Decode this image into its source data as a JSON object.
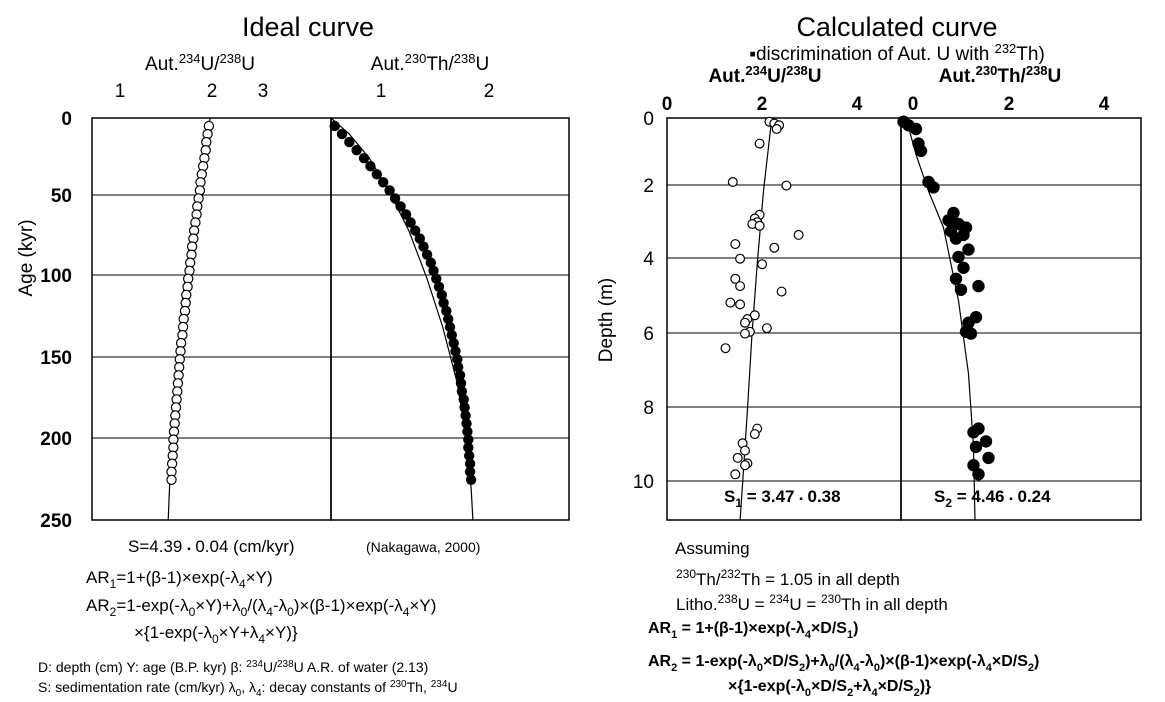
{
  "left_panel": {
    "title": "Ideal curve",
    "ylabel": "Age (kyr)",
    "y_ticks": [
      "0",
      "50",
      "100",
      "150",
      "200",
      "250"
    ]
  },
  "right_panel": {
    "title": "Calculated curve",
    "subtitle": "discrimination of Aut. U with 232Th)",
    "ylabel": "Depth (m)",
    "y_ticks": [
      "0",
      "2",
      "4",
      "6",
      "8",
      "10"
    ]
  },
  "formulas_left": {
    "line1": "S=4.39 ▪ 0.04  (cm/kyr)",
    "citation": "(Nakagawa, 2000)",
    "ar1": "AR1=1+(β-1)×exp(-λ4×Y)",
    "ar2a": "AR2=1-exp(-λ0×Y)+λ0/(λ4-λ0)×(β-1)×exp(-λ4×Y)",
    "ar2b": "×{1-exp(-λ0×Y+λ4×Y)}",
    "note1": "D: depth (cm)   Y: age (B.P. kyr)   β: 234U/238U A.R. of water (2.13)",
    "note2": "S: sedimentation rate (cm/kyr)   λ0, λ4: decay constants of 230Th, 234U"
  },
  "formulas_right": {
    "assuming": "Assuming",
    "line1": "230Th/232Th = 1.05 in all depth",
    "line2": "Litho.238U = 234U = 230Th in all depth",
    "ar1": "AR1 = 1+(β-1)×exp(-λ4×D/S1)",
    "ar2a": "AR2 = 1-exp(-λ0×D/S2)+λ0/(λ4-λ0)×(β-1)×exp(-λ4×D/S2)",
    "ar2b": "×{1-exp(-λ0×D/S2+λ4×D/S2)}"
  },
  "chart_data": [
    {
      "type": "scatter",
      "title": "Ideal curve",
      "xlabel": "Aut.234U/238U",
      "ylabel": "Age (kyr)",
      "xlim": [
        0.3,
        4.0
      ],
      "ylim": [
        250,
        0
      ],
      "x_ticks": [
        "1",
        "2",
        "3"
      ],
      "marker": "open-circle",
      "model_curve": {
        "x": [
          2.13,
          2.02,
          1.92,
          1.81,
          1.71,
          1.62,
          1.53,
          1.48
        ],
        "y": [
          0,
          25,
          50,
          80,
          110,
          150,
          200,
          250
        ]
      },
      "points": {
        "y": [
          5,
          10,
          15,
          20,
          25,
          30,
          35,
          40,
          45,
          50,
          55,
          60,
          65,
          70,
          75,
          80,
          85,
          90,
          95,
          100,
          105,
          110,
          115,
          120,
          125,
          130,
          135,
          140,
          145,
          150,
          155,
          160,
          165,
          170,
          175,
          180,
          185,
          190,
          195,
          200,
          205,
          210,
          215,
          220,
          225
        ],
        "x": [
          2.11,
          2.09,
          2.07,
          2.06,
          2.04,
          2.02,
          2.0,
          1.98,
          1.97,
          1.95,
          1.93,
          1.92,
          1.9,
          1.88,
          1.87,
          1.85,
          1.84,
          1.82,
          1.81,
          1.79,
          1.78,
          1.76,
          1.75,
          1.74,
          1.72,
          1.71,
          1.7,
          1.68,
          1.67,
          1.66,
          1.65,
          1.64,
          1.63,
          1.62,
          1.61,
          1.6,
          1.59,
          1.58,
          1.57,
          1.56,
          1.56,
          1.55,
          1.54,
          1.53,
          1.53
        ]
      }
    },
    {
      "type": "scatter",
      "title": "Ideal curve",
      "xlabel": "Aut.230Th/238U",
      "xlim": [
        0.0,
        2.6
      ],
      "ylim": [
        250,
        0
      ],
      "x_ticks": [
        "1",
        "2"
      ],
      "marker": "filled-circle",
      "model_curve": {
        "x": [
          0,
          0.2,
          0.42,
          0.63,
          0.85,
          1.05,
          1.22,
          1.38,
          1.48,
          1.53,
          1.55
        ],
        "y": [
          0,
          10,
          25,
          45,
          70,
          100,
          130,
          165,
          200,
          230,
          250
        ]
      },
      "points": {
        "y": [
          5,
          10,
          15,
          20,
          25,
          30,
          35,
          40,
          45,
          50,
          55,
          60,
          65,
          70,
          75,
          80,
          85,
          90,
          95,
          100,
          105,
          110,
          115,
          120,
          125,
          130,
          135,
          140,
          145,
          150,
          155,
          160,
          165,
          170,
          175,
          180,
          185,
          190,
          195,
          200,
          205,
          210,
          215,
          220,
          225
        ],
        "x": [
          0.04,
          0.12,
          0.2,
          0.28,
          0.36,
          0.43,
          0.5,
          0.57,
          0.64,
          0.7,
          0.76,
          0.82,
          0.87,
          0.92,
          0.97,
          1.01,
          1.05,
          1.09,
          1.12,
          1.15,
          1.18,
          1.21,
          1.23,
          1.26,
          1.28,
          1.3,
          1.32,
          1.34,
          1.36,
          1.38,
          1.39,
          1.41,
          1.42,
          1.43,
          1.45,
          1.46,
          1.47,
          1.48,
          1.49,
          1.5,
          1.5,
          1.51,
          1.52,
          1.52,
          1.53
        ]
      }
    },
    {
      "type": "scatter",
      "title": "Calculated curve",
      "xlabel": "Aut.234U/238U",
      "ylabel": "Depth (m)",
      "xlim": [
        0,
        4.8
      ],
      "ylim": [
        11,
        0
      ],
      "x_ticks": [
        "0",
        "2",
        "4"
      ],
      "marker": "open-circle",
      "annotation": "S1 = 3.47 ▪ 0.38",
      "model_curve": {
        "x": [
          2.15,
          1.98,
          1.85,
          1.74,
          1.65,
          1.55,
          1.5
        ],
        "y": [
          0,
          2,
          4,
          6,
          8,
          10,
          11
        ]
      },
      "points": {
        "y": [
          0.1,
          0.15,
          0.2,
          0.3,
          0.7,
          1.75,
          1.85,
          2.65,
          2.75,
          2.85,
          2.9,
          2.95,
          3.2,
          3.45,
          3.55,
          3.85,
          4.0,
          4.4,
          4.6,
          4.75,
          5.05,
          5.1,
          5.4,
          5.5,
          5.6,
          5.75,
          5.85,
          5.9,
          6.3,
          8.5,
          8.65,
          8.9,
          9.1,
          9.3,
          9.45,
          9.5,
          9.75
        ],
        "x": [
          2.1,
          2.2,
          2.3,
          2.25,
          1.9,
          1.35,
          2.45,
          1.9,
          1.8,
          1.85,
          1.75,
          1.9,
          2.7,
          1.4,
          2.2,
          1.5,
          1.95,
          1.4,
          1.5,
          2.35,
          1.3,
          1.5,
          1.8,
          1.65,
          1.6,
          2.05,
          1.7,
          1.6,
          1.2,
          1.85,
          1.8,
          1.55,
          1.6,
          1.45,
          1.65,
          1.6,
          1.4
        ]
      }
    },
    {
      "type": "scatter",
      "title": "Calculated curve",
      "xlabel": "Aut.230Th/238U",
      "xlim": [
        0,
        4.8
      ],
      "ylim": [
        11,
        0
      ],
      "x_ticks": [
        "0",
        "2",
        "4"
      ],
      "marker": "filled-circle",
      "annotation": "S2 = 4.46 ▪ 0.24",
      "model_curve": {
        "x": [
          0.1,
          0.3,
          0.55,
          0.85,
          1.15,
          1.35,
          1.45,
          1.48
        ],
        "y": [
          0,
          1,
          2,
          3,
          5,
          7,
          9,
          11
        ]
      },
      "points": {
        "y": [
          0.1,
          0.2,
          0.3,
          0.7,
          0.9,
          1.75,
          1.9,
          2.6,
          2.8,
          2.9,
          3.0,
          3.1,
          3.2,
          3.3,
          3.6,
          3.8,
          4.1,
          4.4,
          4.6,
          4.7,
          5.45,
          5.6,
          5.85,
          5.9,
          8.5,
          8.6,
          8.85,
          9.0,
          9.3,
          9.5,
          9.75
        ],
        "x": [
          0.05,
          0.15,
          0.3,
          0.35,
          0.4,
          0.55,
          0.65,
          1.05,
          0.95,
          1.15,
          1.3,
          1.0,
          1.25,
          1.1,
          1.35,
          1.15,
          1.25,
          1.1,
          1.55,
          1.2,
          1.5,
          1.35,
          1.3,
          1.4,
          1.55,
          1.45,
          1.7,
          1.5,
          1.75,
          1.45,
          1.55
        ]
      }
    }
  ]
}
